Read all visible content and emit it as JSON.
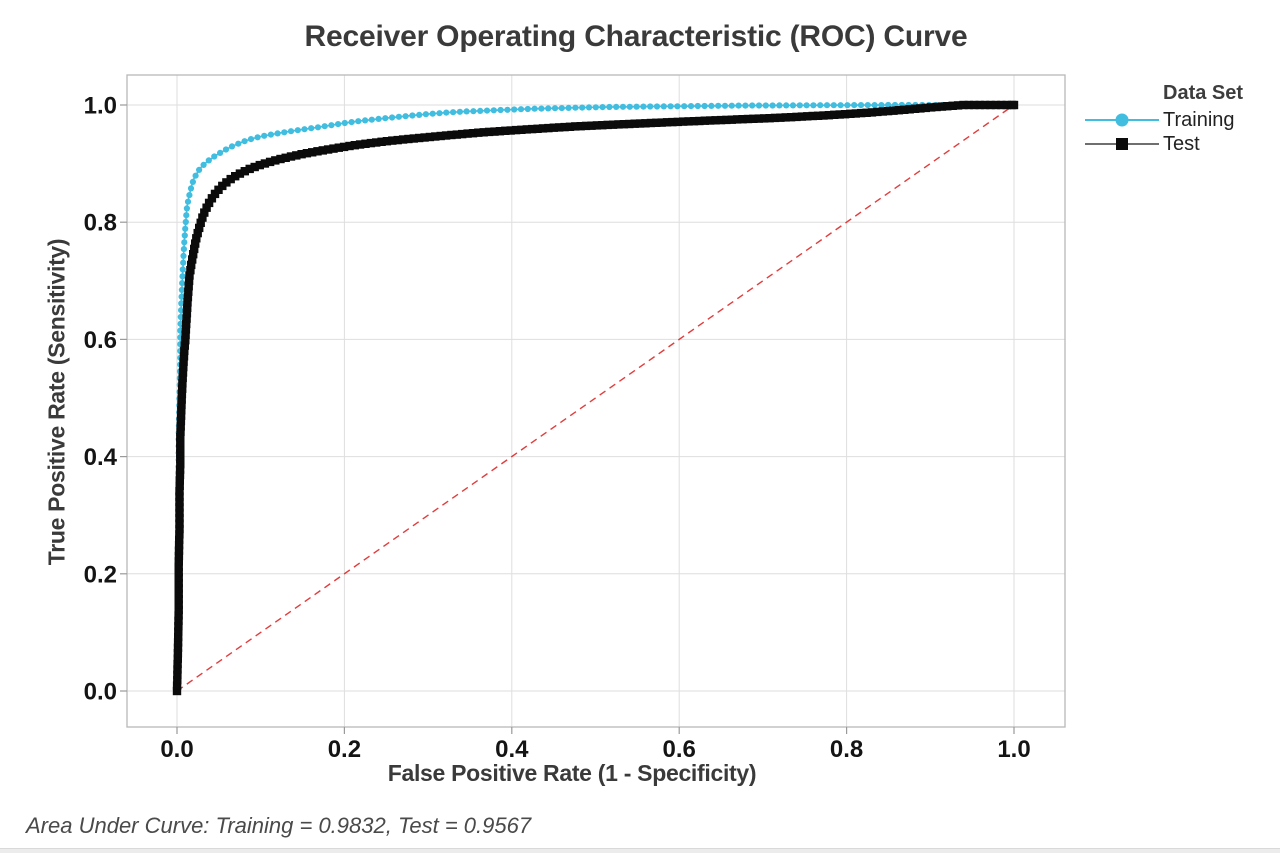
{
  "title": "Receiver Operating Characteristic (ROC) Curve",
  "footer": "Area Under Curve: Training = 0.9832, Test = 0.9567",
  "legend": {
    "title": "Data Set",
    "items": [
      {
        "label": "Training",
        "marker": "circle",
        "color": "#41BDE0",
        "line_color": "#41BDE0"
      },
      {
        "label": "Test",
        "marker": "square",
        "color": "#0B0B0B",
        "line_color": "#6F6F6F"
      }
    ]
  },
  "chart_data": {
    "type": "line",
    "title": "Receiver Operating Characteristic (ROC) Curve",
    "xlabel": "False Positive Rate (1 - Specificity)",
    "ylabel": "True Positive Rate (Sensitivity)",
    "xlim": [
      0,
      1
    ],
    "ylim": [
      0,
      1
    ],
    "xticks": [
      0.0,
      0.2,
      0.4,
      0.6,
      0.8,
      1.0
    ],
    "yticks": [
      0.0,
      0.2,
      0.4,
      0.6,
      0.8,
      1.0
    ],
    "grid": true,
    "legend_position": "right-top",
    "annotation": "Area Under Curve: Training = 0.9832, Test = 0.9567",
    "reference_line": {
      "name": "chance-diagonal",
      "from": [
        0,
        0
      ],
      "to": [
        1,
        1
      ],
      "style": "dashed",
      "color": "#E23C3C"
    },
    "colors": {
      "grid": "#dedede",
      "border": "#b8b8b8",
      "tick": "#9a9a9a",
      "tick_label": "#141414"
    },
    "series": [
      {
        "name": "Training",
        "auc": 0.9832,
        "color": "#41BDE0",
        "marker": "circle",
        "points": [
          [
            0,
            0
          ],
          [
            0.001,
            0.1
          ],
          [
            0.001,
            0.22
          ],
          [
            0.002,
            0.33
          ],
          [
            0.002,
            0.43
          ],
          [
            0.003,
            0.51
          ],
          [
            0.004,
            0.57
          ],
          [
            0.004,
            0.615
          ],
          [
            0.005,
            0.655
          ],
          [
            0.006,
            0.69
          ],
          [
            0.007,
            0.72
          ],
          [
            0.008,
            0.748
          ],
          [
            0.009,
            0.772
          ],
          [
            0.01,
            0.792
          ],
          [
            0.011,
            0.81
          ],
          [
            0.012,
            0.8265
          ],
          [
            0.014,
            0.8415
          ],
          [
            0.016,
            0.854
          ],
          [
            0.018,
            0.8645
          ],
          [
            0.02,
            0.8735
          ],
          [
            0.023,
            0.8815
          ],
          [
            0.026,
            0.8885
          ],
          [
            0.029,
            0.894
          ],
          [
            0.033,
            0.8995
          ],
          [
            0.037,
            0.9045
          ],
          [
            0.042,
            0.9095
          ],
          [
            0.047,
            0.9145
          ],
          [
            0.053,
            0.9195
          ],
          [
            0.059,
            0.9245
          ],
          [
            0.066,
            0.9295
          ],
          [
            0.074,
            0.9345
          ],
          [
            0.082,
            0.939
          ],
          [
            0.091,
            0.943
          ],
          [
            0.101,
            0.9465
          ],
          [
            0.112,
            0.9495
          ],
          [
            0.124,
            0.9525
          ],
          [
            0.137,
            0.9555
          ],
          [
            0.151,
            0.9585
          ],
          [
            0.166,
            0.9615
          ],
          [
            0.182,
            0.965
          ],
          [
            0.199,
            0.969
          ],
          [
            0.217,
            0.9725
          ],
          [
            0.236,
            0.9755
          ],
          [
            0.256,
            0.9785
          ],
          [
            0.277,
            0.9815
          ],
          [
            0.299,
            0.9845
          ],
          [
            0.322,
            0.987
          ],
          [
            0.346,
            0.989
          ],
          [
            0.371,
            0.9905
          ],
          [
            0.397,
            0.992
          ],
          [
            0.424,
            0.9935
          ],
          [
            0.452,
            0.9945
          ],
          [
            0.481,
            0.9955
          ],
          [
            0.511,
            0.9965
          ],
          [
            0.542,
            0.997
          ],
          [
            0.574,
            0.9975
          ],
          [
            0.607,
            0.998
          ],
          [
            0.641,
            0.9985
          ],
          [
            0.676,
            0.999
          ],
          [
            0.712,
            0.9992
          ],
          [
            0.749,
            0.9995
          ],
          [
            0.787,
            0.9997
          ],
          [
            0.826,
            0.9998
          ],
          [
            0.866,
            1.0
          ],
          [
            0.907,
            1.0
          ],
          [
            0.949,
            1.0
          ],
          [
            1.0,
            1.0
          ]
        ]
      },
      {
        "name": "Test",
        "auc": 0.9567,
        "color": "#0B0B0B",
        "marker": "square",
        "points": [
          [
            0,
            0
          ],
          [
            0.001,
            0.06
          ],
          [
            0.002,
            0.14
          ],
          [
            0.002,
            0.21
          ],
          [
            0.003,
            0.28
          ],
          [
            0.003,
            0.34
          ],
          [
            0.004,
            0.39
          ],
          [
            0.004,
            0.435
          ],
          [
            0.005,
            0.475
          ],
          [
            0.006,
            0.51
          ],
          [
            0.007,
            0.54
          ],
          [
            0.008,
            0.565
          ],
          [
            0.009,
            0.585
          ],
          [
            0.01,
            0.6
          ],
          [
            0.011,
            0.625
          ],
          [
            0.012,
            0.65
          ],
          [
            0.013,
            0.672
          ],
          [
            0.014,
            0.692
          ],
          [
            0.015,
            0.71
          ],
          [
            0.017,
            0.727
          ],
          [
            0.019,
            0.743
          ],
          [
            0.021,
            0.758
          ],
          [
            0.023,
            0.772
          ],
          [
            0.026,
            0.788
          ],
          [
            0.029,
            0.802
          ],
          [
            0.032,
            0.8145
          ],
          [
            0.036,
            0.8265
          ],
          [
            0.04,
            0.8375
          ],
          [
            0.045,
            0.8475
          ],
          [
            0.05,
            0.856
          ],
          [
            0.056,
            0.8645
          ],
          [
            0.063,
            0.8725
          ],
          [
            0.07,
            0.879
          ],
          [
            0.078,
            0.885
          ],
          [
            0.087,
            0.891
          ],
          [
            0.097,
            0.8965
          ],
          [
            0.108,
            0.9015
          ],
          [
            0.12,
            0.9065
          ],
          [
            0.133,
            0.911
          ],
          [
            0.147,
            0.9155
          ],
          [
            0.162,
            0.9195
          ],
          [
            0.178,
            0.9235
          ],
          [
            0.195,
            0.9275
          ],
          [
            0.213,
            0.9315
          ],
          [
            0.232,
            0.935
          ],
          [
            0.252,
            0.9385
          ],
          [
            0.273,
            0.9415
          ],
          [
            0.295,
            0.9445
          ],
          [
            0.318,
            0.9475
          ],
          [
            0.342,
            0.9505
          ],
          [
            0.367,
            0.9535
          ],
          [
            0.393,
            0.956
          ],
          [
            0.42,
            0.9585
          ],
          [
            0.448,
            0.961
          ],
          [
            0.477,
            0.9635
          ],
          [
            0.507,
            0.9655
          ],
          [
            0.538,
            0.9675
          ],
          [
            0.57,
            0.9695
          ],
          [
            0.603,
            0.9715
          ],
          [
            0.637,
            0.9735
          ],
          [
            0.672,
            0.9755
          ],
          [
            0.708,
            0.9775
          ],
          [
            0.745,
            0.98
          ],
          [
            0.783,
            0.983
          ],
          [
            0.822,
            0.9865
          ],
          [
            0.862,
            0.991
          ],
          [
            0.902,
            0.996
          ],
          [
            0.94,
            1.0
          ],
          [
            1.0,
            1.0
          ]
        ]
      }
    ]
  }
}
